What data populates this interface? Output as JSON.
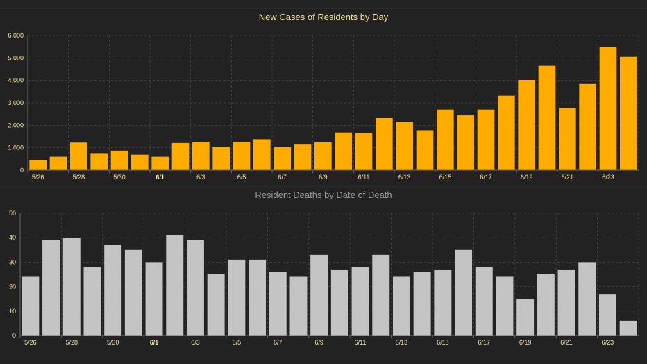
{
  "chart_data": [
    {
      "type": "bar",
      "title": "New Cases of Residents by Day",
      "title_color": "#f5e3a1",
      "bar_color": "#ffab00",
      "tick_color": "#f5e3a1",
      "ylim": [
        0,
        6000
      ],
      "yticks": [
        "0",
        "1,000",
        "2,000",
        "3,000",
        "4,000",
        "5,000",
        "6,000"
      ],
      "ytick_values": [
        0,
        1000,
        2000,
        3000,
        4000,
        5000,
        6000
      ],
      "xlabels": [
        "5/26",
        "5/28",
        "5/30",
        "6/1",
        "6/3",
        "6/5",
        "6/7",
        "6/9",
        "6/11",
        "6/13",
        "6/15",
        "6/17",
        "6/19",
        "6/21",
        "6/23"
      ],
      "categories": [
        "5/26",
        "5/27",
        "5/28",
        "5/29",
        "5/30",
        "5/31",
        "6/1",
        "6/2",
        "6/3",
        "6/4",
        "6/5",
        "6/6",
        "6/7",
        "6/8",
        "6/9",
        "6/10",
        "6/11",
        "6/12",
        "6/13",
        "6/14",
        "6/15",
        "6/16",
        "6/17",
        "6/18",
        "6/19",
        "6/20",
        "6/21",
        "6/22",
        "6/23",
        "6/24"
      ],
      "values": [
        450,
        600,
        1230,
        760,
        870,
        690,
        600,
        1210,
        1260,
        1040,
        1260,
        1380,
        1020,
        1140,
        1240,
        1680,
        1640,
        2320,
        2140,
        1780,
        2700,
        2440,
        2700,
        3320,
        4020,
        4650,
        2770,
        3840,
        5480,
        5050
      ],
      "grid": true
    },
    {
      "type": "bar",
      "title": "Resident Deaths by Date of Death",
      "title_color": "#9a9a9a",
      "bar_color": "#c4c4c4",
      "tick_color": "#f5e3a1",
      "ylim": [
        0,
        50
      ],
      "yticks": [
        "0",
        "10",
        "20",
        "30",
        "40",
        "50"
      ],
      "ytick_values": [
        0,
        10,
        20,
        30,
        40,
        50
      ],
      "xlabels": [
        "5/26",
        "5/28",
        "5/30",
        "6/1",
        "6/3",
        "6/5",
        "6/7",
        "6/9",
        "6/11",
        "6/13",
        "6/15",
        "6/17",
        "6/19",
        "6/21",
        "6/23"
      ],
      "categories": [
        "5/26",
        "5/27",
        "5/28",
        "5/29",
        "5/30",
        "5/31",
        "6/1",
        "6/2",
        "6/3",
        "6/4",
        "6/5",
        "6/6",
        "6/7",
        "6/8",
        "6/9",
        "6/10",
        "6/11",
        "6/12",
        "6/13",
        "6/14",
        "6/15",
        "6/16",
        "6/17",
        "6/18",
        "6/19",
        "6/20",
        "6/21",
        "6/22",
        "6/23",
        "6/24"
      ],
      "values": [
        24,
        39,
        40,
        28,
        37,
        35,
        30,
        41,
        39,
        25,
        31,
        31,
        26,
        24,
        33,
        27,
        28,
        33,
        24,
        26,
        27,
        35,
        28,
        24,
        15,
        25,
        27,
        30,
        17,
        6
      ],
      "grid": true
    }
  ]
}
